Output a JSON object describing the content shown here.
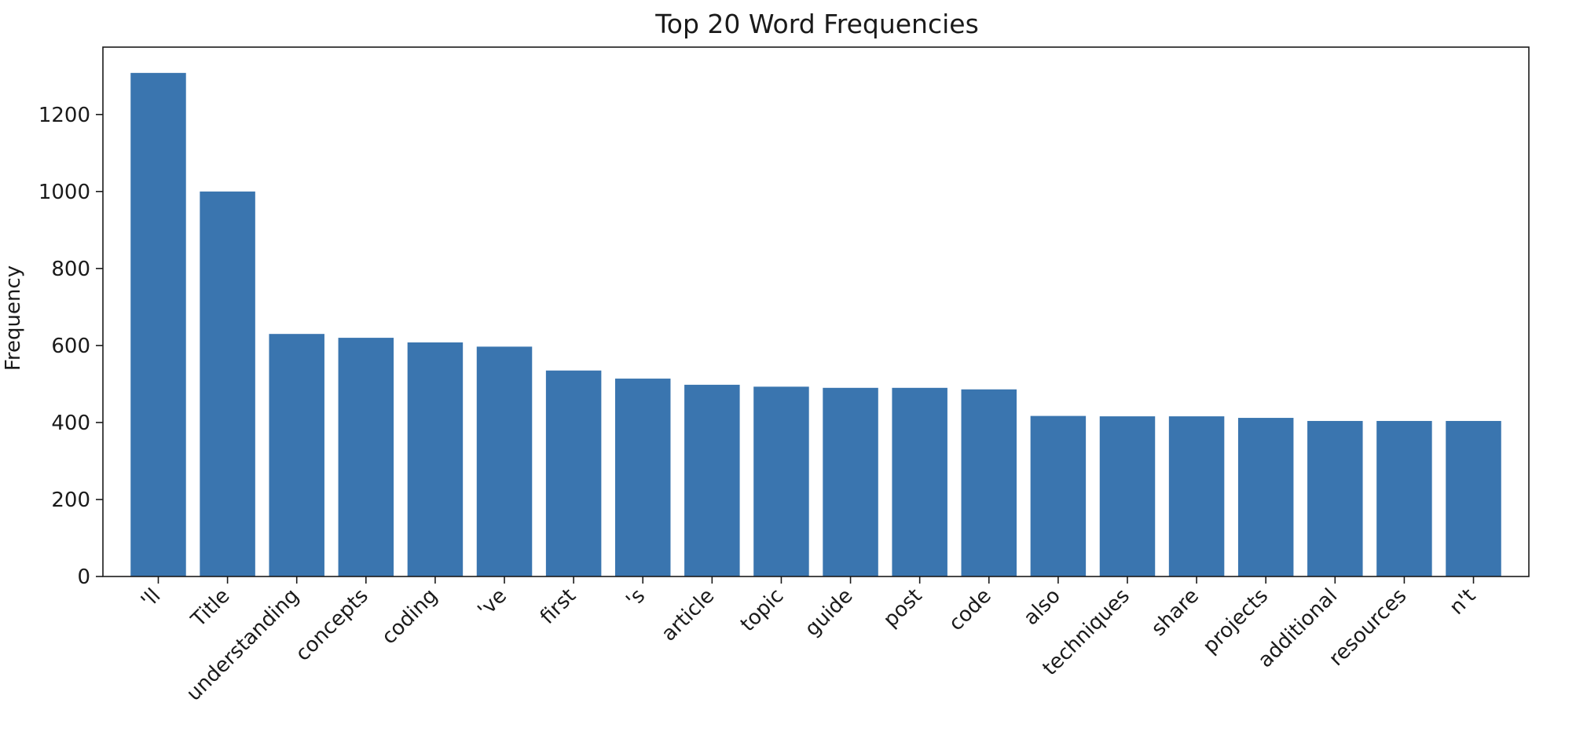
{
  "chart_data": {
    "type": "bar",
    "title": "Top 20 Word Frequencies",
    "xlabel": "",
    "ylabel": "Frequency",
    "categories": [
      "'ll",
      "Title",
      "understanding",
      "concepts",
      "coding",
      "'ve",
      "first",
      "'s",
      "article",
      "topic",
      "guide",
      "post",
      "code",
      "also",
      "techniques",
      "share",
      "projects",
      "additional",
      "resources",
      "n't"
    ],
    "values": [
      1308,
      1000,
      630,
      620,
      608,
      597,
      535,
      514,
      498,
      493,
      490,
      490,
      486,
      417,
      416,
      416,
      412,
      404,
      404,
      404
    ],
    "ylim": [
      0,
      1375
    ],
    "yticks": [
      0,
      200,
      400,
      600,
      800,
      1000,
      1200
    ],
    "grid": false,
    "bar_color": "#3a75af"
  }
}
